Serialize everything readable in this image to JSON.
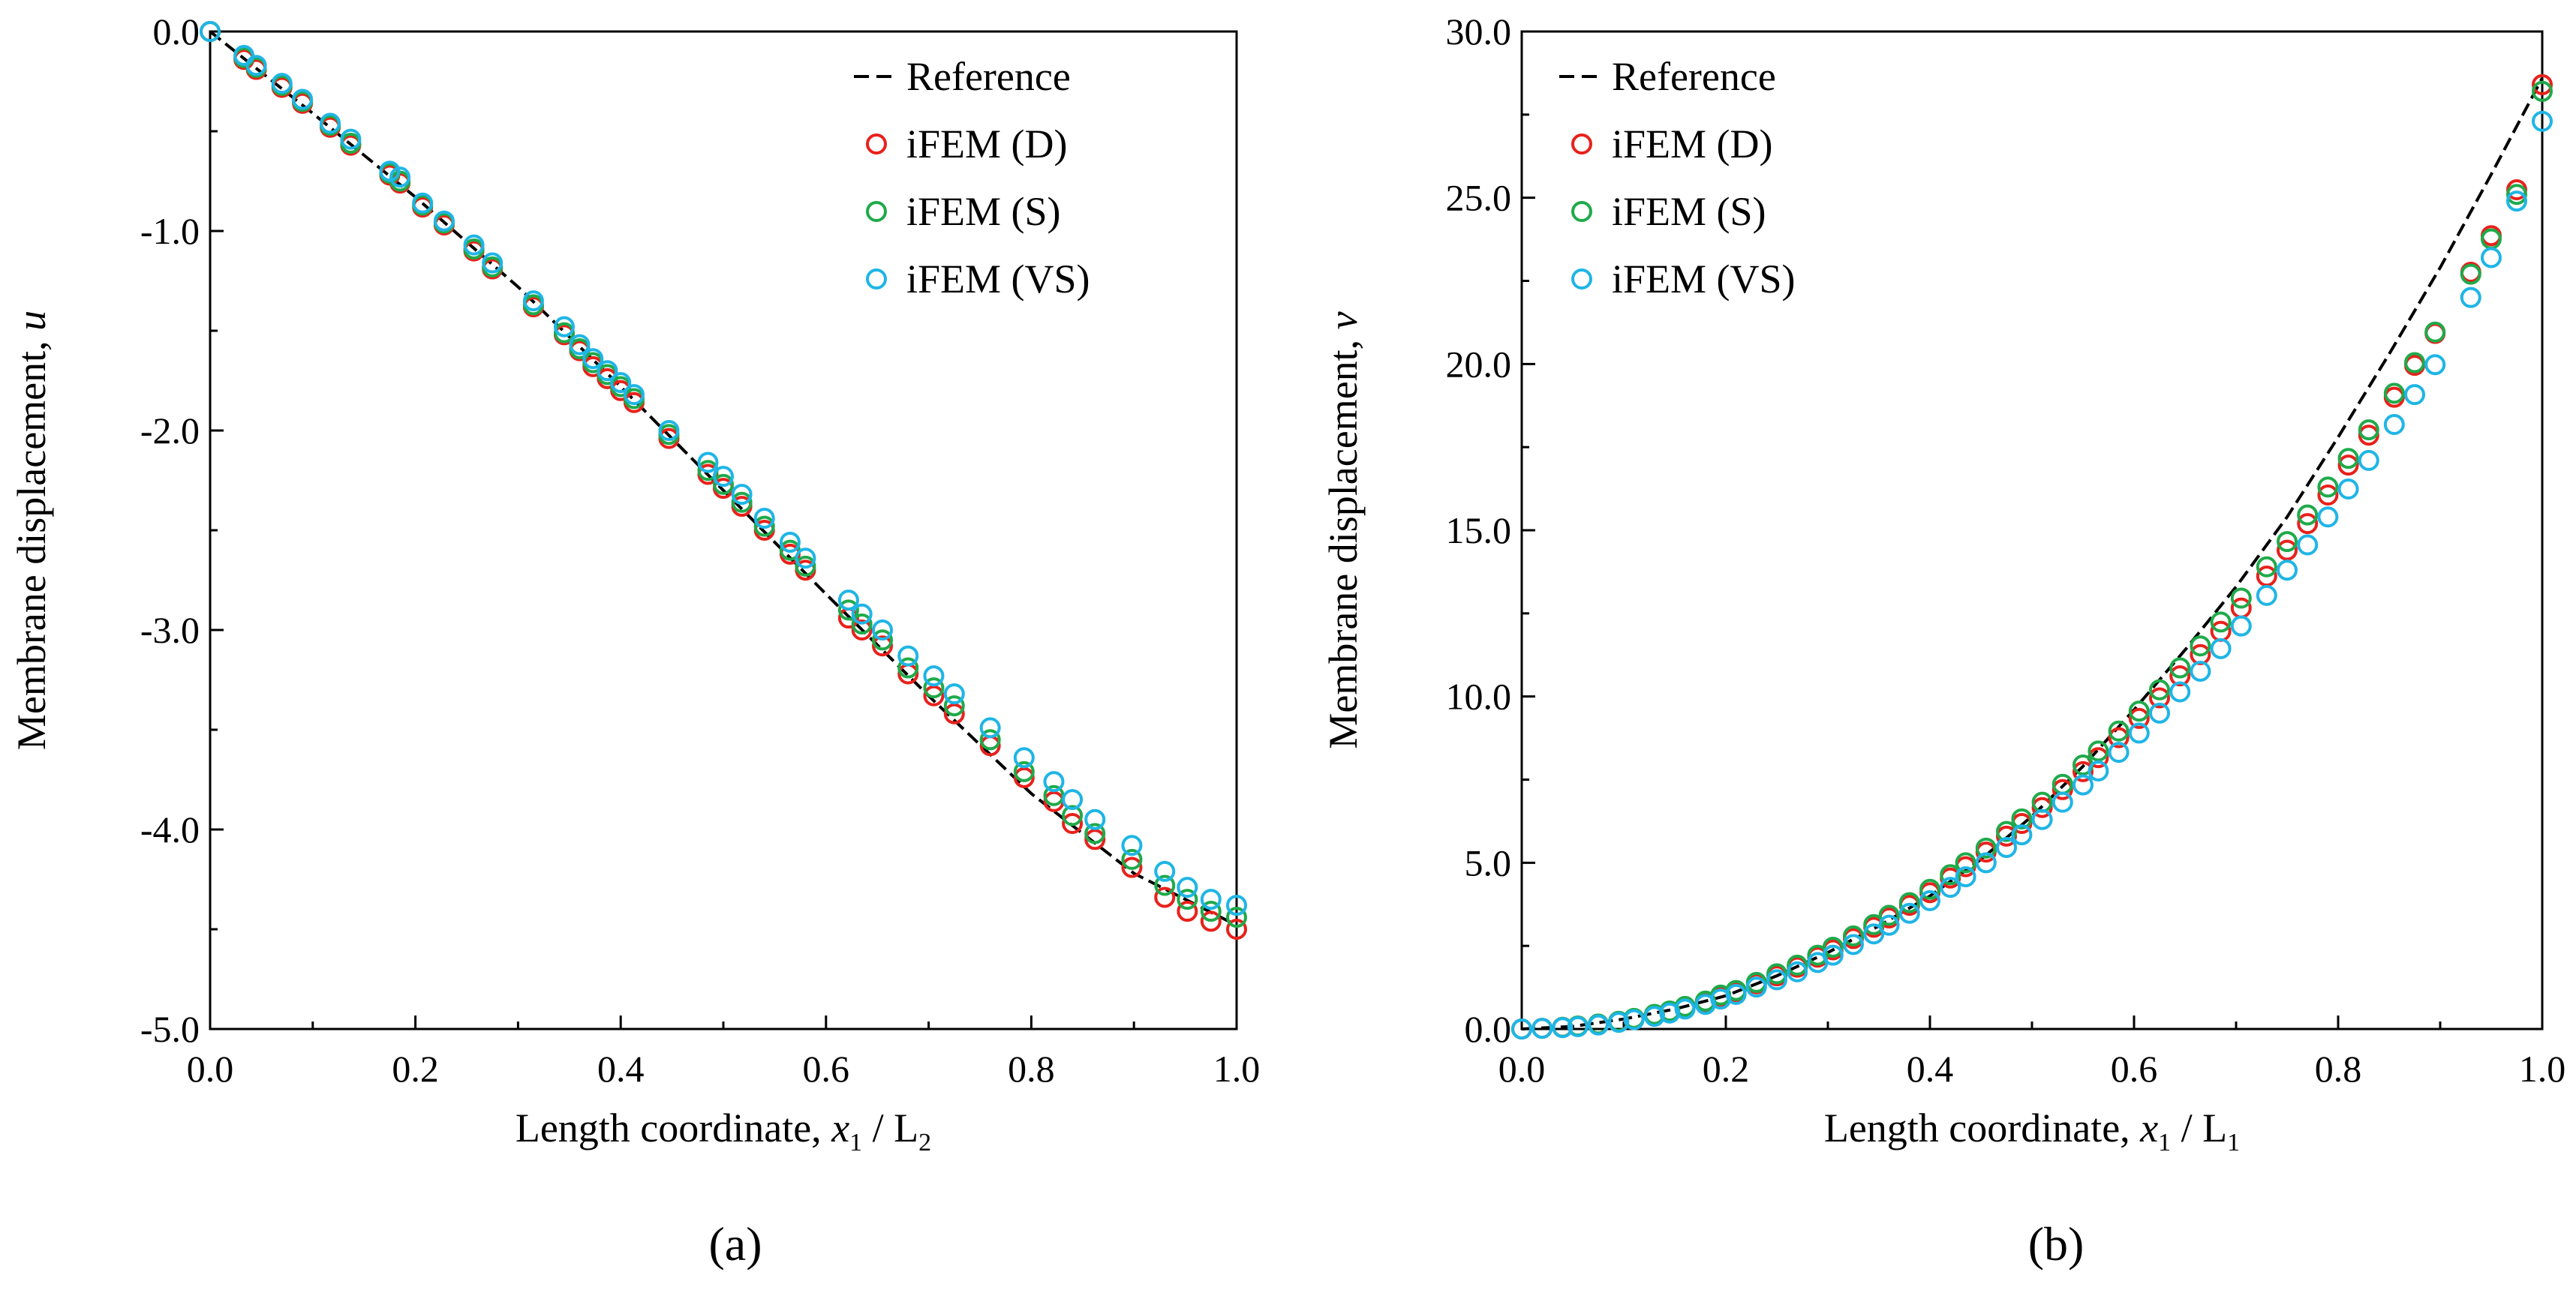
{
  "chart_data": [
    {
      "type": "line",
      "panel_label": "(a)",
      "xlabel": {
        "text": "Length coordinate, ",
        "var": "x",
        "var_sub": "1",
        "rest": " / L",
        "rest_sub": "2"
      },
      "ylabel": {
        "text": "Membrane displacement, ",
        "var": "u"
      },
      "xlim": [
        0,
        1
      ],
      "ylim": [
        -5,
        0
      ],
      "xticks": [
        "0.0",
        "0.2",
        "0.4",
        "0.6",
        "0.8",
        "1.0"
      ],
      "yticks": [
        "0.0",
        "-1.0",
        "-2.0",
        "-3.0",
        "-4.0",
        "-5.0"
      ],
      "xtick_values": [
        0,
        0.2,
        0.4,
        0.6,
        0.8,
        1.0
      ],
      "ytick_values": [
        0,
        -1,
        -2,
        -3,
        -4,
        -5
      ],
      "legend": {
        "position": "top-right",
        "entries": [
          "Reference",
          "iFEM (D)",
          "iFEM (S)",
          "iFEM (VS)"
        ]
      },
      "series": [
        {
          "name": "Reference",
          "style": "dashed-line",
          "color": "#000000",
          "x": [
            0,
            0.1,
            0.2,
            0.3,
            0.4,
            0.5,
            0.6,
            0.7,
            0.8,
            0.9,
            1.0
          ],
          "y": [
            0,
            -0.41,
            -0.83,
            -1.28,
            -1.78,
            -2.3,
            -2.82,
            -3.33,
            -3.82,
            -4.22,
            -4.48
          ]
        },
        {
          "name": "iFEM (D)",
          "style": "open-circle",
          "color": "#e8211b",
          "x": [
            0,
            0.033,
            0.045,
            0.07,
            0.09,
            0.117,
            0.137,
            0.175,
            0.185,
            0.207,
            0.228,
            0.257,
            0.275,
            0.315,
            0.345,
            0.36,
            0.373,
            0.387,
            0.4,
            0.413,
            0.447,
            0.485,
            0.5,
            0.518,
            0.54,
            0.565,
            0.58,
            0.622,
            0.635,
            0.655,
            0.68,
            0.705,
            0.725,
            0.76,
            0.793,
            0.822,
            0.84,
            0.862,
            0.898,
            0.93,
            0.952,
            0.975,
            1.0
          ],
          "y": [
            0,
            -0.14,
            -0.19,
            -0.28,
            -0.36,
            -0.48,
            -0.57,
            -0.72,
            -0.76,
            -0.88,
            -0.97,
            -1.1,
            -1.19,
            -1.38,
            -1.52,
            -1.6,
            -1.68,
            -1.74,
            -1.8,
            -1.86,
            -2.04,
            -2.22,
            -2.29,
            -2.38,
            -2.5,
            -2.62,
            -2.7,
            -2.94,
            -3.0,
            -3.08,
            -3.22,
            -3.33,
            -3.42,
            -3.58,
            -3.74,
            -3.86,
            -3.97,
            -4.05,
            -4.19,
            -4.34,
            -4.41,
            -4.46,
            -4.5
          ]
        },
        {
          "name": "iFEM (S)",
          "style": "open-circle",
          "color": "#1faa4a",
          "x": [
            0,
            0.033,
            0.045,
            0.07,
            0.09,
            0.117,
            0.137,
            0.175,
            0.185,
            0.207,
            0.228,
            0.257,
            0.275,
            0.315,
            0.345,
            0.36,
            0.373,
            0.387,
            0.4,
            0.413,
            0.447,
            0.485,
            0.5,
            0.518,
            0.54,
            0.565,
            0.58,
            0.622,
            0.635,
            0.655,
            0.68,
            0.705,
            0.725,
            0.76,
            0.793,
            0.822,
            0.84,
            0.862,
            0.898,
            0.93,
            0.952,
            0.975,
            1.0
          ],
          "y": [
            0,
            -0.13,
            -0.18,
            -0.27,
            -0.35,
            -0.47,
            -0.56,
            -0.71,
            -0.75,
            -0.87,
            -0.96,
            -1.09,
            -1.18,
            -1.37,
            -1.51,
            -1.59,
            -1.66,
            -1.72,
            -1.78,
            -1.84,
            -2.02,
            -2.2,
            -2.27,
            -2.36,
            -2.48,
            -2.6,
            -2.68,
            -2.9,
            -2.97,
            -3.05,
            -3.19,
            -3.29,
            -3.38,
            -3.55,
            -3.71,
            -3.83,
            -3.93,
            -4.02,
            -4.15,
            -4.28,
            -4.35,
            -4.41,
            -4.44
          ]
        },
        {
          "name": "iFEM (VS)",
          "style": "open-circle",
          "color": "#1fb5e6",
          "x": [
            0,
            0.033,
            0.045,
            0.07,
            0.09,
            0.117,
            0.137,
            0.175,
            0.185,
            0.207,
            0.228,
            0.257,
            0.275,
            0.315,
            0.345,
            0.36,
            0.373,
            0.387,
            0.4,
            0.413,
            0.447,
            0.485,
            0.5,
            0.518,
            0.54,
            0.565,
            0.58,
            0.622,
            0.635,
            0.655,
            0.68,
            0.705,
            0.725,
            0.76,
            0.793,
            0.822,
            0.84,
            0.862,
            0.898,
            0.93,
            0.952,
            0.975,
            1.0
          ],
          "y": [
            0,
            -0.12,
            -0.17,
            -0.26,
            -0.34,
            -0.46,
            -0.54,
            -0.7,
            -0.73,
            -0.86,
            -0.95,
            -1.07,
            -1.16,
            -1.35,
            -1.48,
            -1.57,
            -1.64,
            -1.7,
            -1.76,
            -1.82,
            -2.0,
            -2.16,
            -2.23,
            -2.32,
            -2.44,
            -2.56,
            -2.64,
            -2.85,
            -2.92,
            -3.0,
            -3.13,
            -3.23,
            -3.32,
            -3.49,
            -3.64,
            -3.76,
            -3.85,
            -3.95,
            -4.08,
            -4.21,
            -4.29,
            -4.35,
            -4.38
          ]
        }
      ]
    },
    {
      "type": "line",
      "panel_label": "(b)",
      "xlabel": {
        "text": "Length coordinate, ",
        "var": "x",
        "var_sub": "1",
        "rest": " / L",
        "rest_sub": "1"
      },
      "ylabel": {
        "text": "Membrane displacement, ",
        "var": "v"
      },
      "xlim": [
        0,
        1
      ],
      "ylim": [
        0,
        30
      ],
      "xticks": [
        "0.0",
        "0.2",
        "0.4",
        "0.6",
        "0.8",
        "1.0"
      ],
      "yticks": [
        "0.0",
        "5.0",
        "10.0",
        "15.0",
        "20.0",
        "25.0",
        "30.0"
      ],
      "xtick_values": [
        0,
        0.2,
        0.4,
        0.6,
        0.8,
        1.0
      ],
      "ytick_values": [
        0,
        5,
        10,
        15,
        20,
        25,
        30
      ],
      "legend": {
        "position": "top-left",
        "entries": [
          "Reference",
          "iFEM (D)",
          "iFEM (S)",
          "iFEM (VS)"
        ]
      },
      "series": [
        {
          "name": "Reference",
          "style": "dashed-line",
          "color": "#000000",
          "x": [
            0,
            0.05,
            0.1,
            0.15,
            0.2,
            0.25,
            0.3,
            0.35,
            0.4,
            0.45,
            0.5,
            0.55,
            0.6,
            0.65,
            0.7,
            0.75,
            0.8,
            0.85,
            0.9,
            0.95,
            1.0
          ],
          "y": [
            0,
            0.08,
            0.3,
            0.6,
            1.0,
            1.6,
            2.3,
            3.1,
            4.0,
            5.1,
            6.4,
            7.9,
            9.6,
            11.4,
            13.3,
            15.4,
            17.8,
            20.3,
            22.9,
            25.7,
            28.6
          ]
        },
        {
          "name": "iFEM (D)",
          "style": "open-circle",
          "color": "#e8211b",
          "x": [
            0,
            0.02,
            0.04,
            0.055,
            0.075,
            0.095,
            0.11,
            0.13,
            0.145,
            0.16,
            0.18,
            0.195,
            0.21,
            0.23,
            0.25,
            0.27,
            0.29,
            0.305,
            0.325,
            0.345,
            0.36,
            0.38,
            0.4,
            0.42,
            0.435,
            0.455,
            0.475,
            0.49,
            0.51,
            0.53,
            0.55,
            0.565,
            0.585,
            0.605,
            0.625,
            0.645,
            0.665,
            0.685,
            0.705,
            0.73,
            0.75,
            0.77,
            0.79,
            0.81,
            0.83,
            0.855,
            0.875,
            0.895,
            0.93,
            0.95,
            0.975,
            1.0
          ],
          "y": [
            0,
            0.02,
            0.05,
            0.08,
            0.14,
            0.22,
            0.3,
            0.42,
            0.52,
            0.66,
            0.82,
            0.98,
            1.12,
            1.36,
            1.6,
            1.86,
            2.16,
            2.38,
            2.72,
            3.06,
            3.34,
            3.72,
            4.1,
            4.54,
            4.88,
            5.32,
            5.8,
            6.18,
            6.66,
            7.2,
            7.74,
            8.16,
            8.76,
            9.34,
            9.96,
            10.62,
            11.26,
            11.96,
            12.66,
            13.62,
            14.4,
            15.2,
            16.06,
            16.96,
            17.86,
            19.0,
            19.96,
            20.92,
            22.76,
            23.86,
            25.24,
            28.4
          ]
        },
        {
          "name": "iFEM (S)",
          "style": "open-circle",
          "color": "#1faa4a",
          "x": [
            0,
            0.02,
            0.04,
            0.055,
            0.075,
            0.095,
            0.11,
            0.13,
            0.145,
            0.16,
            0.18,
            0.195,
            0.21,
            0.23,
            0.25,
            0.27,
            0.29,
            0.305,
            0.325,
            0.345,
            0.36,
            0.38,
            0.4,
            0.42,
            0.435,
            0.455,
            0.475,
            0.49,
            0.51,
            0.53,
            0.55,
            0.565,
            0.585,
            0.605,
            0.625,
            0.645,
            0.665,
            0.685,
            0.705,
            0.73,
            0.75,
            0.77,
            0.79,
            0.81,
            0.83,
            0.855,
            0.875,
            0.895,
            0.93,
            0.95,
            0.975,
            1.0
          ],
          "y": [
            0,
            0.02,
            0.05,
            0.09,
            0.15,
            0.23,
            0.32,
            0.44,
            0.54,
            0.68,
            0.84,
            1.02,
            1.16,
            1.4,
            1.66,
            1.92,
            2.22,
            2.46,
            2.8,
            3.14,
            3.42,
            3.8,
            4.2,
            4.64,
            5.0,
            5.44,
            5.94,
            6.32,
            6.82,
            7.36,
            7.94,
            8.36,
            8.96,
            9.56,
            10.2,
            10.86,
            11.52,
            12.24,
            12.96,
            13.9,
            14.66,
            15.46,
            16.3,
            17.16,
            18.02,
            19.12,
            20.04,
            20.96,
            22.7,
            23.76,
            25.1,
            28.2
          ]
        },
        {
          "name": "iFEM (VS)",
          "style": "open-circle",
          "color": "#1fb5e6",
          "x": [
            0,
            0.02,
            0.04,
            0.055,
            0.075,
            0.095,
            0.11,
            0.13,
            0.145,
            0.16,
            0.18,
            0.195,
            0.21,
            0.23,
            0.25,
            0.27,
            0.29,
            0.305,
            0.325,
            0.345,
            0.36,
            0.38,
            0.4,
            0.42,
            0.435,
            0.455,
            0.475,
            0.49,
            0.51,
            0.53,
            0.55,
            0.565,
            0.585,
            0.605,
            0.625,
            0.645,
            0.665,
            0.685,
            0.705,
            0.73,
            0.75,
            0.77,
            0.79,
            0.81,
            0.83,
            0.855,
            0.875,
            0.895,
            0.93,
            0.95,
            0.975,
            1.0
          ],
          "y": [
            0,
            0.02,
            0.04,
            0.07,
            0.12,
            0.2,
            0.28,
            0.38,
            0.48,
            0.6,
            0.74,
            0.9,
            1.04,
            1.26,
            1.48,
            1.72,
            2.0,
            2.22,
            2.54,
            2.86,
            3.12,
            3.48,
            3.86,
            4.26,
            4.58,
            5.0,
            5.46,
            5.84,
            6.3,
            6.82,
            7.34,
            7.76,
            8.32,
            8.9,
            9.5,
            10.14,
            10.76,
            11.44,
            12.12,
            13.04,
            13.8,
            14.56,
            15.4,
            16.24,
            17.1,
            18.18,
            19.08,
            19.98,
            22.0,
            23.2,
            24.9,
            27.3
          ]
        }
      ]
    }
  ]
}
